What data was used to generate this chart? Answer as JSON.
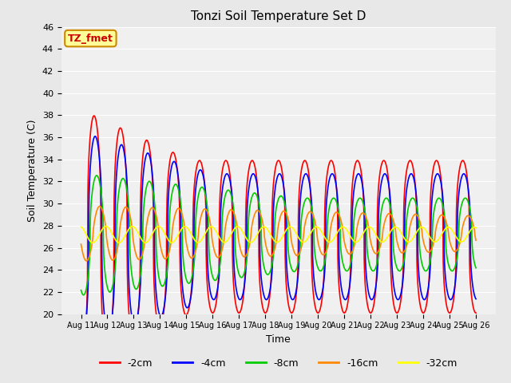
{
  "title": "Tonzi Soil Temperature Set D",
  "xlabel": "Time",
  "ylabel": "Soil Temperature (C)",
  "ylim": [
    20,
    46
  ],
  "yticks": [
    20,
    22,
    24,
    26,
    28,
    30,
    32,
    34,
    36,
    38,
    40,
    42,
    44,
    46
  ],
  "legend_label": "TZ_fmet",
  "legend_box_color": "#FFFF99",
  "legend_box_edge": "#CC8800",
  "bg_color": "#E8E8E8",
  "plot_bg_color": "#F0F0F0",
  "colors": {
    "-2cm": "#FF0000",
    "-4cm": "#0000FF",
    "-8cm": "#00CC00",
    "-16cm": "#FF8800",
    "-32cm": "#FFFF00"
  },
  "line_width": 1.2,
  "n_days": 15,
  "start_day": 11,
  "depth_params": {
    "2": {
      "amp": 11.5,
      "phase": 0.0,
      "base": 27.0,
      "decay": 0.12
    },
    "4": {
      "amp": 9.5,
      "phase": 0.25,
      "base": 27.0,
      "decay": 0.1
    },
    "8": {
      "amp": 5.5,
      "phase": 0.6,
      "base": 27.2,
      "decay": 0.06
    },
    "16": {
      "amp": 2.5,
      "phase": 1.3,
      "base": 27.3,
      "decay": 0.03
    },
    "32": {
      "amp": 0.75,
      "phase": 2.8,
      "base": 27.2,
      "decay": 0.01
    }
  }
}
